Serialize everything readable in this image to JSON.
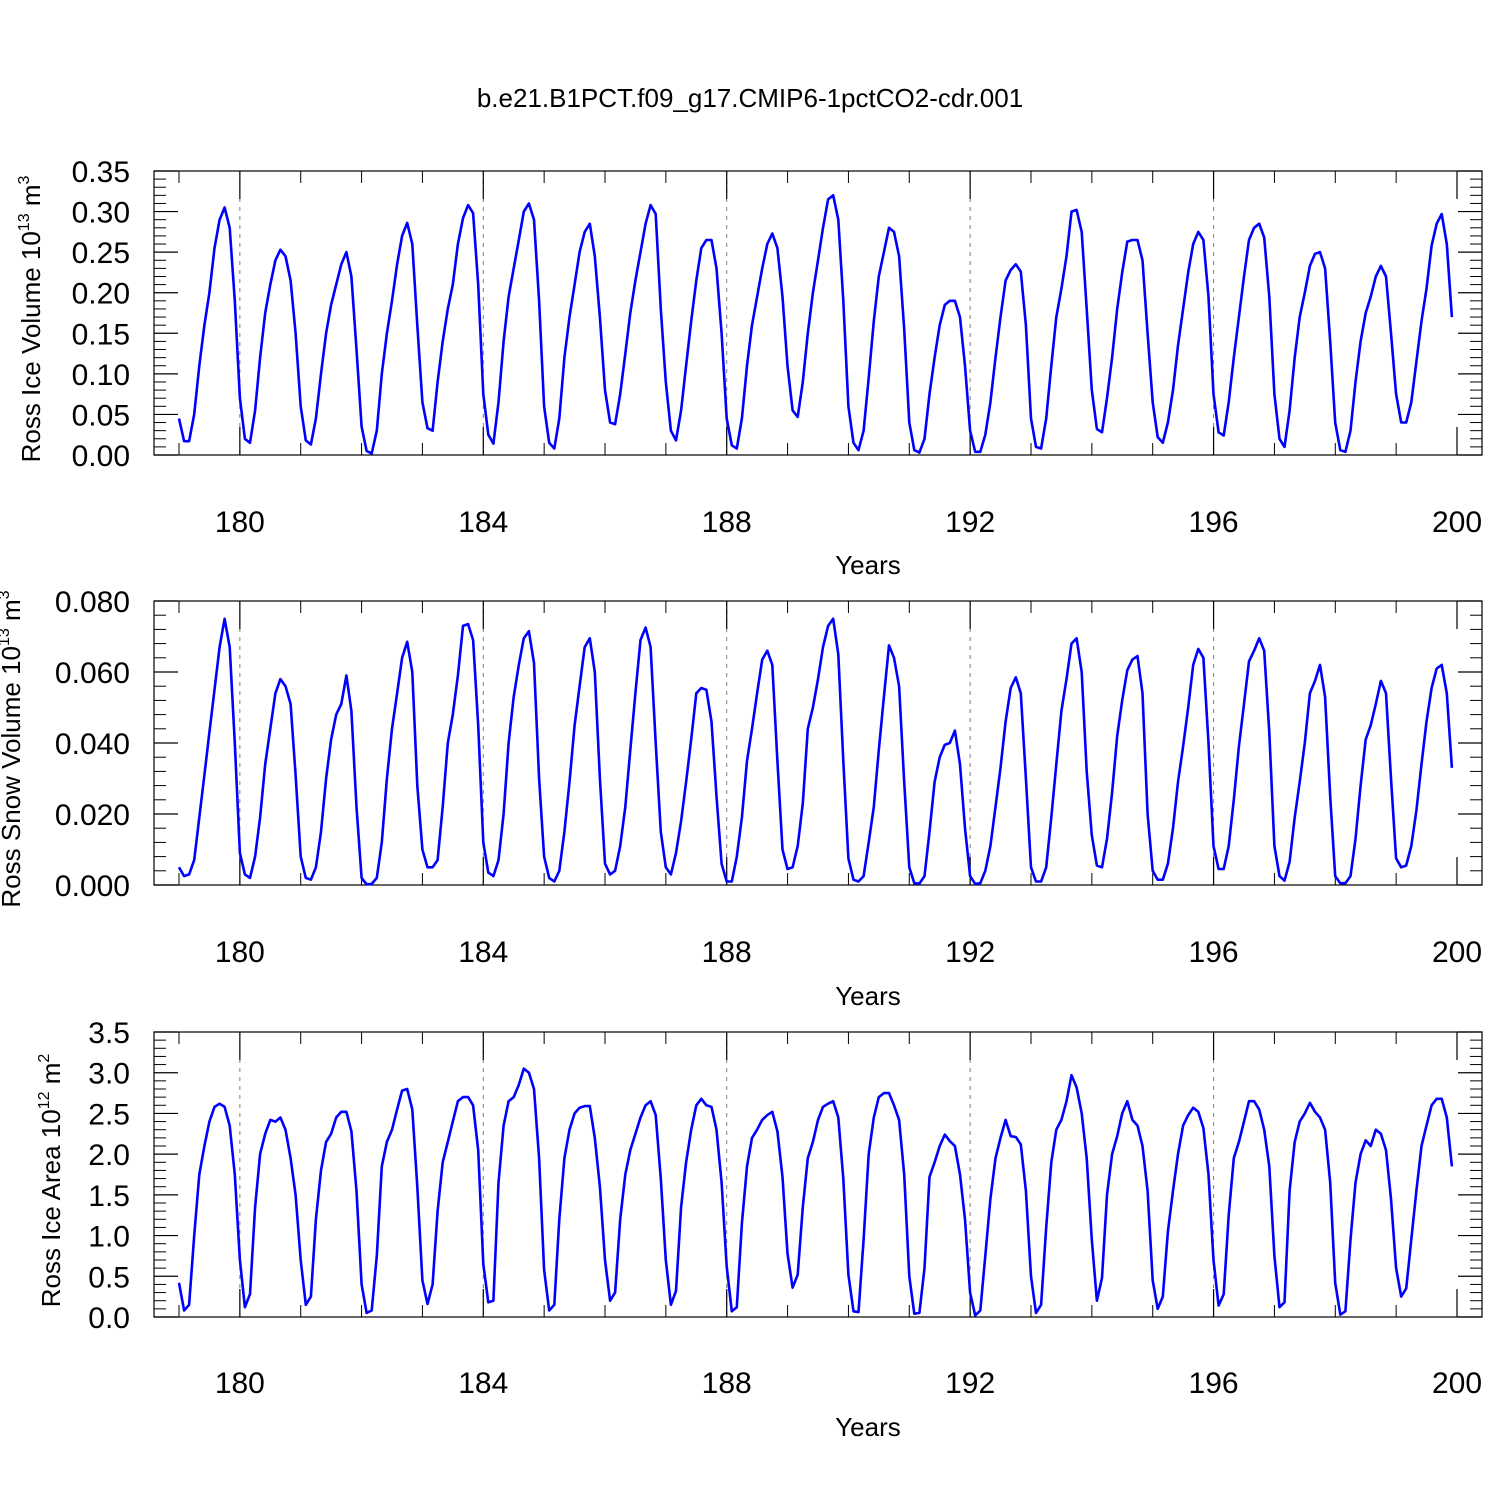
{
  "title": "b.e21.B1PCT.f09_g17.CMIP6-1pctCO2-cdr.001",
  "colors": {
    "series": "#0000ff",
    "axes": "#000000",
    "dash": "#7f7f7f"
  },
  "chart_data": [
    {
      "type": "line",
      "title": "",
      "ylabel": {
        "text": "Ross Ice Volume 10",
        "exp": "13",
        "unit": " m",
        "unit_exp": "3"
      },
      "xlabel": "Years",
      "xlim": [
        179,
        200
      ],
      "ylim": [
        0,
        0.35
      ],
      "xticks": [
        180,
        184,
        188,
        192,
        196,
        200
      ],
      "xtick_labels": [
        "180",
        "184",
        "188",
        "192",
        "196",
        "200"
      ],
      "yticks": [
        0,
        0.05,
        0.1,
        0.15,
        0.2,
        0.25,
        0.3,
        0.35
      ],
      "ytick_labels": [
        "0.00",
        "0.05",
        "0.10",
        "0.15",
        "0.20",
        "0.25",
        "0.30",
        "0.35"
      ],
      "dashed_years": [
        180,
        184,
        188,
        192,
        196
      ],
      "series": [
        {
          "color": "#0000ff",
          "x_start": 179.0,
          "x_step": 0.08333,
          "values": [
            0.045,
            0.017,
            0.017,
            0.05,
            0.11,
            0.16,
            0.2,
            0.255,
            0.29,
            0.305,
            0.28,
            0.19,
            0.07,
            0.02,
            0.015,
            0.055,
            0.12,
            0.175,
            0.21,
            0.24,
            0.253,
            0.245,
            0.215,
            0.15,
            0.06,
            0.018,
            0.013,
            0.045,
            0.1,
            0.15,
            0.185,
            0.21,
            0.235,
            0.25,
            0.22,
            0.13,
            0.035,
            0.005,
            0.002,
            0.03,
            0.1,
            0.15,
            0.19,
            0.235,
            0.27,
            0.286,
            0.26,
            0.16,
            0.065,
            0.033,
            0.03,
            0.09,
            0.14,
            0.18,
            0.21,
            0.26,
            0.292,
            0.308,
            0.298,
            0.21,
            0.075,
            0.025,
            0.014,
            0.065,
            0.14,
            0.195,
            0.23,
            0.265,
            0.3,
            0.31,
            0.29,
            0.19,
            0.06,
            0.015,
            0.008,
            0.045,
            0.12,
            0.17,
            0.21,
            0.25,
            0.275,
            0.285,
            0.245,
            0.17,
            0.08,
            0.04,
            0.038,
            0.075,
            0.125,
            0.175,
            0.215,
            0.25,
            0.285,
            0.308,
            0.297,
            0.18,
            0.09,
            0.03,
            0.018,
            0.055,
            0.11,
            0.165,
            0.215,
            0.255,
            0.265,
            0.265,
            0.23,
            0.15,
            0.045,
            0.012,
            0.008,
            0.045,
            0.11,
            0.16,
            0.195,
            0.23,
            0.26,
            0.273,
            0.255,
            0.195,
            0.11,
            0.055,
            0.047,
            0.09,
            0.15,
            0.2,
            0.24,
            0.28,
            0.315,
            0.32,
            0.29,
            0.19,
            0.06,
            0.015,
            0.006,
            0.03,
            0.095,
            0.165,
            0.22,
            0.25,
            0.28,
            0.275,
            0.245,
            0.155,
            0.04,
            0.006,
            0.003,
            0.02,
            0.075,
            0.12,
            0.16,
            0.185,
            0.19,
            0.19,
            0.17,
            0.11,
            0.03,
            0.004,
            0.004,
            0.025,
            0.065,
            0.12,
            0.17,
            0.215,
            0.228,
            0.235,
            0.226,
            0.16,
            0.045,
            0.01,
            0.008,
            0.045,
            0.11,
            0.17,
            0.205,
            0.245,
            0.3,
            0.302,
            0.275,
            0.18,
            0.08,
            0.032,
            0.028,
            0.07,
            0.12,
            0.18,
            0.225,
            0.263,
            0.265,
            0.265,
            0.24,
            0.15,
            0.065,
            0.022,
            0.015,
            0.04,
            0.08,
            0.135,
            0.18,
            0.225,
            0.26,
            0.275,
            0.265,
            0.195,
            0.075,
            0.028,
            0.024,
            0.065,
            0.12,
            0.17,
            0.22,
            0.265,
            0.28,
            0.285,
            0.268,
            0.195,
            0.075,
            0.02,
            0.01,
            0.055,
            0.12,
            0.17,
            0.2,
            0.233,
            0.248,
            0.25,
            0.23,
            0.14,
            0.04,
            0.006,
            0.004,
            0.03,
            0.09,
            0.14,
            0.175,
            0.195,
            0.22,
            0.233,
            0.22,
            0.15,
            0.075,
            0.04,
            0.04,
            0.065,
            0.115,
            0.165,
            0.205,
            0.258,
            0.285,
            0.297,
            0.26,
            0.17
          ]
        }
      ]
    },
    {
      "type": "line",
      "title": "",
      "ylabel": {
        "text": "Ross Snow Volume 10",
        "exp": "13",
        "unit": " m",
        "unit_exp": "3"
      },
      "xlabel": "Years",
      "xlim": [
        179,
        200
      ],
      "ylim": [
        0,
        0.08
      ],
      "xticks": [
        180,
        184,
        188,
        192,
        196,
        200
      ],
      "xtick_labels": [
        "180",
        "184",
        "188",
        "192",
        "196",
        "200"
      ],
      "yticks": [
        0,
        0.02,
        0.04,
        0.06,
        0.08
      ],
      "ytick_labels": [
        "0.000",
        "0.020",
        "0.040",
        "0.060",
        "0.080"
      ],
      "dashed_years": [
        180,
        184,
        188,
        192,
        196
      ],
      "series": [
        {
          "color": "#0000ff",
          "x_start": 179.0,
          "x_step": 0.08333,
          "values": [
            0.005,
            0.0025,
            0.003,
            0.007,
            0.019,
            0.031,
            0.043,
            0.055,
            0.067,
            0.075,
            0.067,
            0.04,
            0.009,
            0.003,
            0.002,
            0.008,
            0.019,
            0.034,
            0.044,
            0.054,
            0.058,
            0.056,
            0.051,
            0.031,
            0.008,
            0.002,
            0.0015,
            0.005,
            0.015,
            0.03,
            0.041,
            0.048,
            0.051,
            0.059,
            0.049,
            0.022,
            0.002,
            0.0002,
            0.0003,
            0.002,
            0.012,
            0.03,
            0.044,
            0.054,
            0.064,
            0.0685,
            0.06,
            0.028,
            0.01,
            0.005,
            0.005,
            0.007,
            0.022,
            0.04,
            0.048,
            0.059,
            0.073,
            0.0735,
            0.069,
            0.045,
            0.012,
            0.0035,
            0.0025,
            0.007,
            0.02,
            0.04,
            0.053,
            0.062,
            0.0695,
            0.0715,
            0.0625,
            0.03,
            0.008,
            0.002,
            0.001,
            0.004,
            0.015,
            0.029,
            0.045,
            0.056,
            0.067,
            0.0695,
            0.06,
            0.03,
            0.006,
            0.003,
            0.004,
            0.011,
            0.022,
            0.038,
            0.054,
            0.069,
            0.0725,
            0.067,
            0.04,
            0.015,
            0.005,
            0.003,
            0.009,
            0.018,
            0.029,
            0.041,
            0.054,
            0.0555,
            0.055,
            0.046,
            0.025,
            0.006,
            0.001,
            0.001,
            0.008,
            0.019,
            0.035,
            0.044,
            0.054,
            0.0635,
            0.066,
            0.062,
            0.035,
            0.01,
            0.0045,
            0.005,
            0.011,
            0.023,
            0.044,
            0.05,
            0.058,
            0.067,
            0.073,
            0.075,
            0.065,
            0.035,
            0.0075,
            0.0015,
            0.001,
            0.0025,
            0.012,
            0.022,
            0.038,
            0.053,
            0.0675,
            0.064,
            0.056,
            0.029,
            0.005,
            0.0005,
            0.0004,
            0.0025,
            0.015,
            0.029,
            0.036,
            0.0395,
            0.04,
            0.0435,
            0.034,
            0.016,
            0.0025,
            0.0003,
            0.0005,
            0.004,
            0.011,
            0.022,
            0.033,
            0.046,
            0.0555,
            0.0585,
            0.054,
            0.03,
            0.005,
            0.001,
            0.001,
            0.005,
            0.019,
            0.034,
            0.049,
            0.058,
            0.068,
            0.0695,
            0.06,
            0.032,
            0.014,
            0.0055,
            0.005,
            0.013,
            0.026,
            0.042,
            0.052,
            0.0605,
            0.0635,
            0.0645,
            0.054,
            0.02,
            0.004,
            0.0015,
            0.0015,
            0.006,
            0.016,
            0.029,
            0.039,
            0.05,
            0.062,
            0.0665,
            0.064,
            0.04,
            0.011,
            0.0045,
            0.0045,
            0.011,
            0.024,
            0.039,
            0.051,
            0.063,
            0.066,
            0.0695,
            0.066,
            0.043,
            0.011,
            0.0025,
            0.0012,
            0.0065,
            0.019,
            0.029,
            0.04,
            0.054,
            0.0575,
            0.062,
            0.053,
            0.025,
            0.0025,
            0.0005,
            0.0005,
            0.0025,
            0.013,
            0.028,
            0.041,
            0.045,
            0.051,
            0.0575,
            0.054,
            0.03,
            0.0075,
            0.005,
            0.0055,
            0.011,
            0.021,
            0.034,
            0.046,
            0.0555,
            0.061,
            0.062,
            0.054,
            0.033
          ]
        }
      ]
    },
    {
      "type": "line",
      "title": "",
      "ylabel": {
        "text": "Ross Ice Area 10",
        "exp": "12",
        "unit": " m",
        "unit_exp": "2"
      },
      "xlabel": "Years",
      "xlim": [
        179,
        200
      ],
      "ylim": [
        0,
        3.5
      ],
      "xticks": [
        180,
        184,
        188,
        192,
        196,
        200
      ],
      "xtick_labels": [
        "180",
        "184",
        "188",
        "192",
        "196",
        "200"
      ],
      "yticks": [
        0,
        0.5,
        1.0,
        1.5,
        2.0,
        2.5,
        3.0,
        3.5
      ],
      "ytick_labels": [
        "0.0",
        "0.5",
        "1.0",
        "1.5",
        "2.0",
        "2.5",
        "3.0",
        "3.5"
      ],
      "dashed_years": [
        180,
        184,
        188,
        192,
        196
      ],
      "series": [
        {
          "color": "#0000ff",
          "x_start": 179.0,
          "x_step": 0.08333,
          "values": [
            0.42,
            0.08,
            0.15,
            1.0,
            1.75,
            2.1,
            2.4,
            2.58,
            2.62,
            2.58,
            2.35,
            1.75,
            0.7,
            0.12,
            0.28,
            1.35,
            2.0,
            2.25,
            2.42,
            2.4,
            2.45,
            2.3,
            1.95,
            1.5,
            0.7,
            0.15,
            0.25,
            1.2,
            1.8,
            2.15,
            2.25,
            2.45,
            2.52,
            2.52,
            2.28,
            1.55,
            0.4,
            0.05,
            0.08,
            0.75,
            1.85,
            2.15,
            2.3,
            2.55,
            2.78,
            2.8,
            2.55,
            1.6,
            0.45,
            0.16,
            0.4,
            1.3,
            1.9,
            2.15,
            2.4,
            2.65,
            2.7,
            2.7,
            2.6,
            2.05,
            0.65,
            0.18,
            0.2,
            1.65,
            2.35,
            2.65,
            2.7,
            2.85,
            3.05,
            3.0,
            2.8,
            1.95,
            0.58,
            0.08,
            0.15,
            1.2,
            1.95,
            2.3,
            2.5,
            2.57,
            2.59,
            2.59,
            2.2,
            1.6,
            0.7,
            0.2,
            0.3,
            1.2,
            1.75,
            2.05,
            2.25,
            2.45,
            2.6,
            2.65,
            2.48,
            1.7,
            0.7,
            0.15,
            0.32,
            1.35,
            1.9,
            2.3,
            2.6,
            2.68,
            2.6,
            2.58,
            2.3,
            1.65,
            0.62,
            0.07,
            0.12,
            1.15,
            1.85,
            2.2,
            2.3,
            2.42,
            2.48,
            2.52,
            2.28,
            1.72,
            0.78,
            0.36,
            0.52,
            1.35,
            1.95,
            2.15,
            2.42,
            2.58,
            2.62,
            2.65,
            2.45,
            1.7,
            0.52,
            0.07,
            0.06,
            0.95,
            2.0,
            2.45,
            2.7,
            2.75,
            2.75,
            2.6,
            2.42,
            1.75,
            0.5,
            0.04,
            0.05,
            0.6,
            1.72,
            1.9,
            2.1,
            2.24,
            2.16,
            2.1,
            1.75,
            1.2,
            0.3,
            0.02,
            0.08,
            0.75,
            1.45,
            1.95,
            2.2,
            2.42,
            2.22,
            2.21,
            2.12,
            1.55,
            0.5,
            0.05,
            0.15,
            1.1,
            1.9,
            2.3,
            2.42,
            2.65,
            2.97,
            2.82,
            2.5,
            1.95,
            0.95,
            0.2,
            0.48,
            1.5,
            2.0,
            2.22,
            2.5,
            2.65,
            2.42,
            2.35,
            2.1,
            1.55,
            0.45,
            0.1,
            0.25,
            1.05,
            1.55,
            2.0,
            2.35,
            2.48,
            2.57,
            2.52,
            2.32,
            1.75,
            0.7,
            0.14,
            0.28,
            1.25,
            1.95,
            2.15,
            2.4,
            2.65,
            2.65,
            2.55,
            2.3,
            1.85,
            0.75,
            0.12,
            0.18,
            1.55,
            2.15,
            2.4,
            2.5,
            2.63,
            2.52,
            2.45,
            2.3,
            1.65,
            0.42,
            0.03,
            0.07,
            0.95,
            1.65,
            2.0,
            2.17,
            2.1,
            2.3,
            2.25,
            2.05,
            1.45,
            0.6,
            0.25,
            0.35,
            0.95,
            1.55,
            2.1,
            2.35,
            2.6,
            2.68,
            2.68,
            2.45,
            1.85
          ]
        }
      ]
    }
  ]
}
